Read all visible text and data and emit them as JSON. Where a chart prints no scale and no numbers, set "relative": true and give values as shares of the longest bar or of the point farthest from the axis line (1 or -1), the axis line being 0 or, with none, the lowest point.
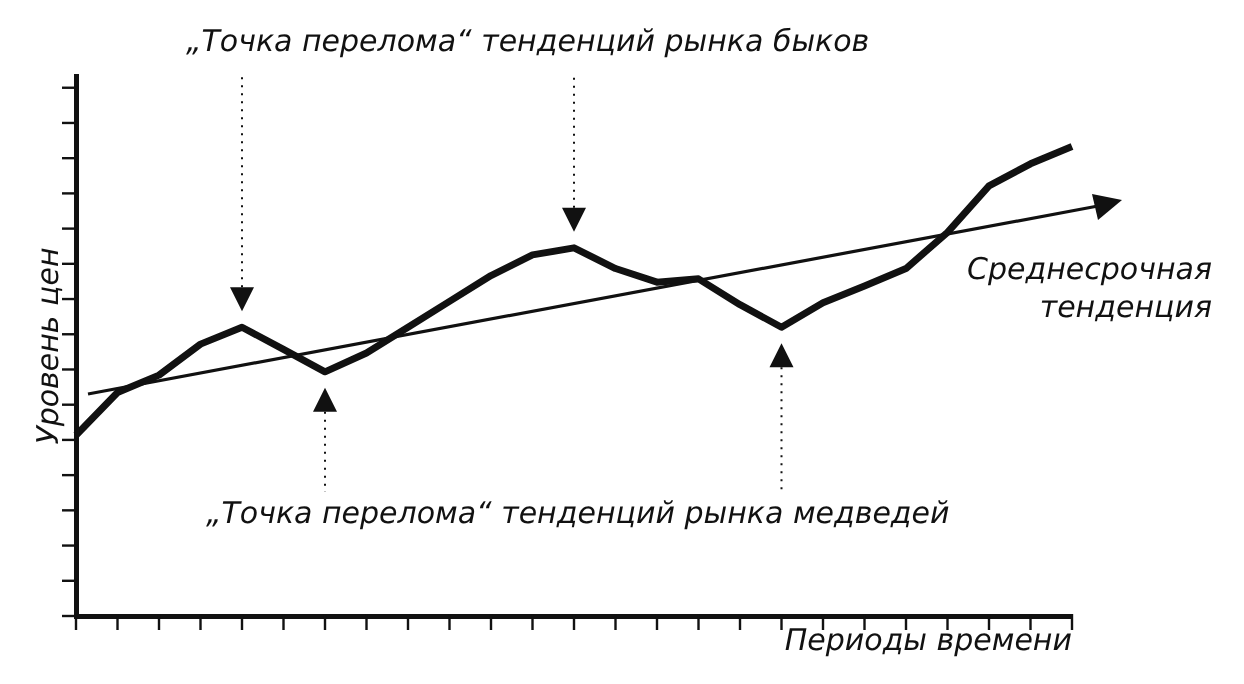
{
  "chart_data": {
    "type": "line",
    "relative": true,
    "xlabel": "Периоды времени",
    "ylabel": "Уровень цен",
    "grid": false,
    "legend": false,
    "marker": "none",
    "tick_labels": false,
    "categories": [
      null,
      null,
      null,
      null,
      null,
      null,
      null,
      null,
      null,
      null,
      null,
      null,
      null,
      null,
      null,
      null,
      null,
      null,
      null,
      null,
      null,
      null,
      null,
      null,
      null
    ],
    "series": [
      {
        "color": "#111111",
        "values": [
          0.385,
          0.476,
          0.513,
          0.579,
          0.615,
          0.568,
          0.52,
          0.56,
          0.615,
          0.67,
          0.725,
          0.769,
          0.784,
          0.74,
          0.711,
          0.718,
          0.663,
          0.615,
          0.667,
          0.703,
          0.74,
          0.817,
          0.916,
          0.963,
          1
        ]
      }
    ],
    "annotations": [
      "„Точка перелома“ тенденций рынка быков",
      "„Точка перелома“ тенденций рынка медведей",
      "Среднесрочная тенденция"
    ]
  }
}
